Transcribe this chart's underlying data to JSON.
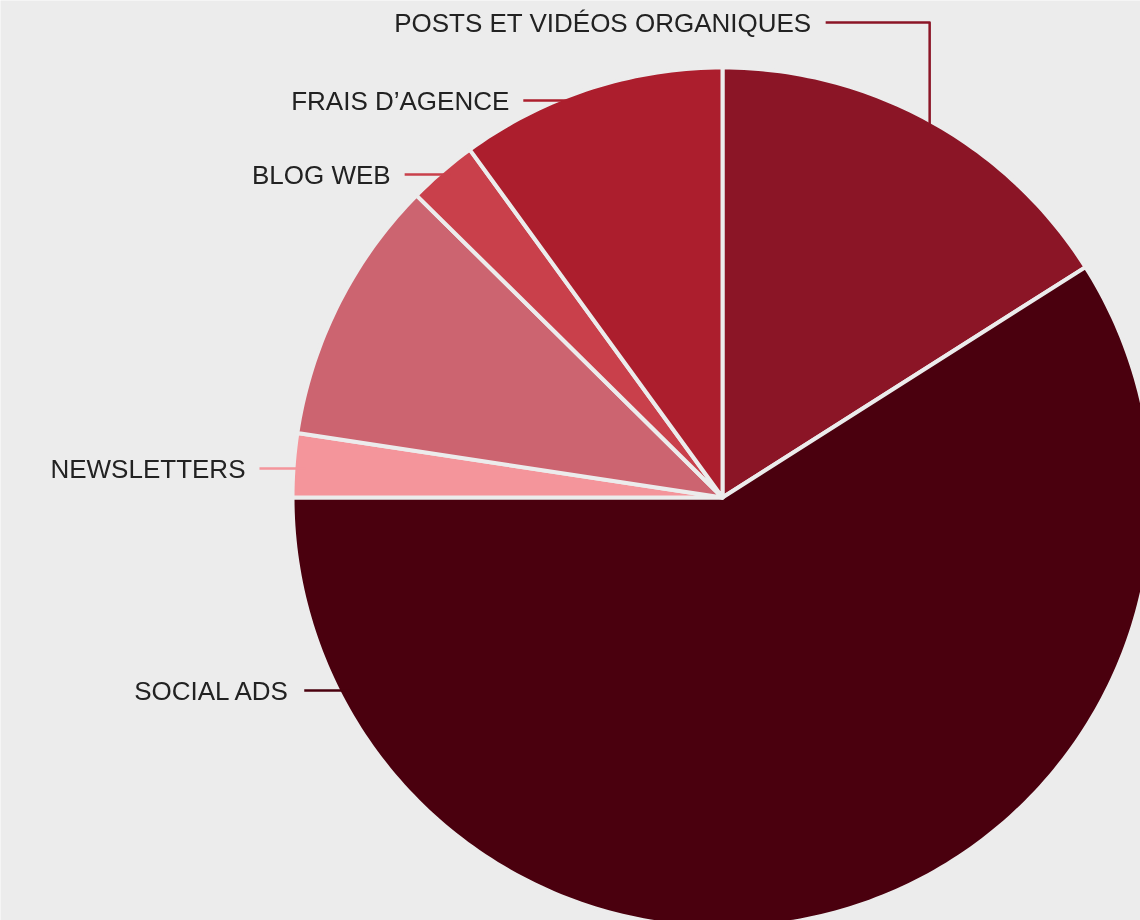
{
  "chart_data": {
    "type": "pie",
    "categories": [
      "POSTS ET VIDÉOS ORGANIQUES",
      "SOCIAL ADS",
      "NEWSLETTERS",
      null,
      "BLOG WEB",
      "FRAIS D’AGENCE"
    ],
    "values": [
      16,
      59,
      2.4,
      10,
      2.6,
      10
    ],
    "colors": [
      "#8b1526",
      "#4a000e",
      "#f4959b",
      "#cc6470",
      "#c9404b",
      "#ac1e2d"
    ]
  }
}
